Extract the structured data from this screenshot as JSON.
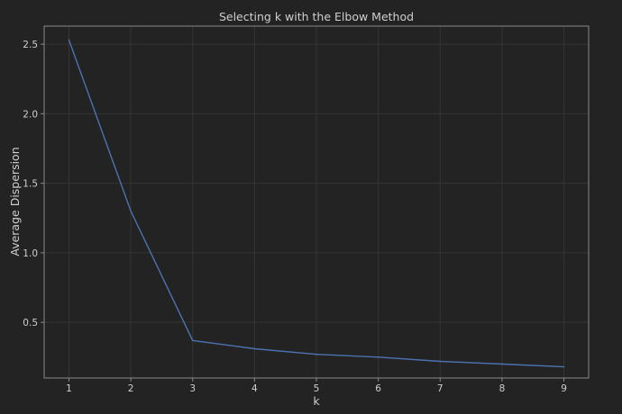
{
  "chart_data": {
    "type": "line",
    "title": "Selecting k with the Elbow Method",
    "xlabel": "k",
    "ylabel": "Average Dispersion",
    "x": [
      1,
      2,
      3,
      4,
      5,
      6,
      7,
      8,
      9
    ],
    "y": [
      2.53,
      1.3,
      0.37,
      0.31,
      0.27,
      0.25,
      0.22,
      0.2,
      0.18
    ],
    "xlim": [
      0.6,
      9.4
    ],
    "ylim": [
      0.1,
      2.63
    ],
    "xticks": [
      1,
      2,
      3,
      4,
      5,
      6,
      7,
      8,
      9
    ],
    "yticks": [
      0.5,
      1.0,
      1.5,
      2.0,
      2.5
    ],
    "ytick_labels": [
      "0.5",
      "1.0",
      "1.5",
      "2.0",
      "2.5"
    ],
    "grid": true,
    "line_color": "#4c72b0",
    "background_color": "#232323",
    "grid_color": "#353535",
    "frame_color": "#8a8a8a"
  }
}
